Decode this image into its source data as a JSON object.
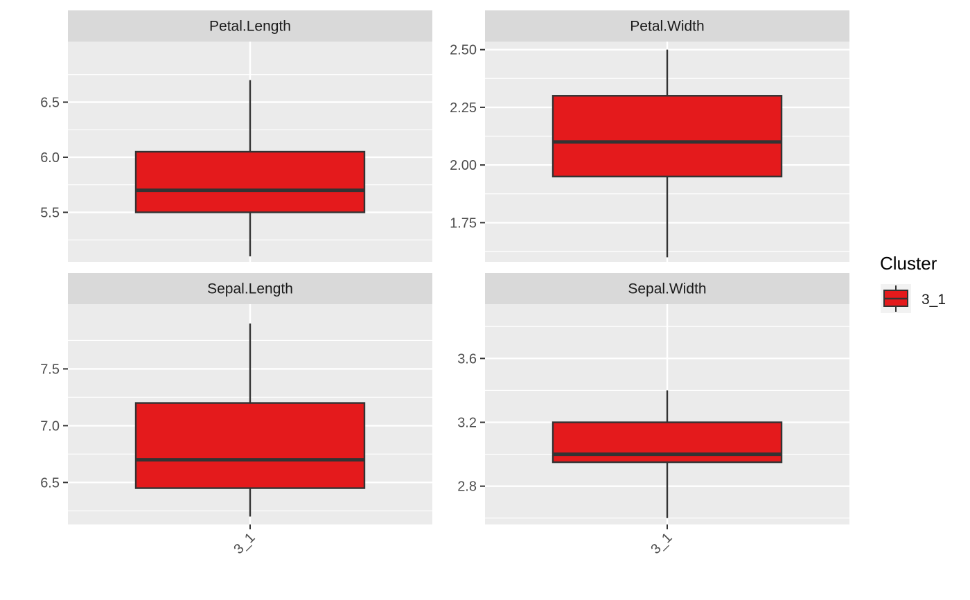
{
  "chart_data": {
    "type": "boxplot",
    "legend": {
      "title": "Cluster",
      "entries": [
        {
          "label": "3_1",
          "color": "#e41a1c"
        }
      ],
      "placement": "right"
    },
    "colors": {
      "box_fill": "#e41a1c",
      "box_line": "#333333",
      "panel_bg": "#ebebeb",
      "strip_bg": "#d9d9d9",
      "grid": "#ffffff"
    },
    "grid": true,
    "panels": [
      {
        "title": "Petal.Length",
        "category": "3_1",
        "ylim": [
          5.05,
          7.05
        ],
        "yticks": [
          5.5,
          6.0,
          6.5
        ],
        "tick_labels": [
          "5.5",
          "6.0",
          "6.5"
        ],
        "minor_ticks": [
          5.25,
          5.75,
          6.25,
          6.75
        ],
        "box": {
          "min": 5.1,
          "q1": 5.5,
          "median": 5.7,
          "q3": 6.05,
          "max": 6.7
        },
        "show_x_label": false
      },
      {
        "title": "Petal.Width",
        "category": "3_1",
        "ylim": [
          1.58,
          2.535
        ],
        "yticks": [
          1.75,
          2.0,
          2.25,
          2.5
        ],
        "tick_labels": [
          "1.75",
          "2.00",
          "2.25",
          "2.50"
        ],
        "minor_ticks": [
          1.625,
          1.875,
          2.125,
          2.375
        ],
        "box": {
          "min": 1.6,
          "q1": 1.95,
          "median": 2.1,
          "q3": 2.3,
          "max": 2.5
        },
        "show_x_label": false
      },
      {
        "title": "Sepal.Length",
        "category": "3_1",
        "ylim": [
          6.13,
          8.07
        ],
        "yticks": [
          6.5,
          7.0,
          7.5
        ],
        "tick_labels": [
          "6.5",
          "7.0",
          "7.5"
        ],
        "minor_ticks": [
          6.25,
          6.75,
          7.25,
          7.75
        ],
        "box": {
          "min": 6.2,
          "q1": 6.45,
          "median": 6.7,
          "q3": 7.2,
          "max": 7.9
        },
        "show_x_label": true
      },
      {
        "title": "Sepal.Width",
        "category": "3_1",
        "ylim": [
          2.56,
          3.94
        ],
        "yticks": [
          2.8,
          3.2,
          3.6
        ],
        "tick_labels": [
          "2.8",
          "3.2",
          "3.6"
        ],
        "minor_ticks": [
          2.6,
          3.0,
          3.4,
          3.8
        ],
        "box": {
          "min": 2.6,
          "q1": 2.95,
          "median": 3.0,
          "q3": 3.2,
          "max": 3.4
        },
        "show_x_label": true
      }
    ]
  }
}
